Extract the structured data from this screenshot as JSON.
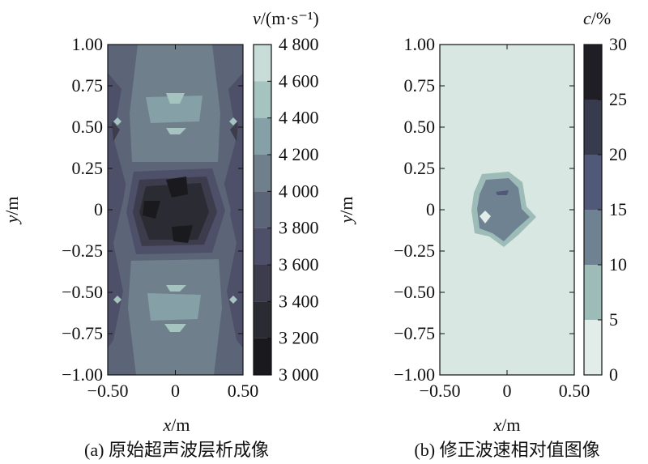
{
  "chart_data": [
    {
      "type": "heatmap",
      "kind": "filled-contour",
      "caption": "(a) 原始超声波层析成像",
      "xlabel": {
        "var": "x",
        "unit": "/m"
      },
      "ylabel": {
        "var": "y",
        "unit": "/m"
      },
      "colorbar_title": {
        "var": "v",
        "unit": "/(m·s⁻¹)"
      },
      "xlim": [
        -0.5,
        0.5
      ],
      "ylim": [
        -1.0,
        1.0
      ],
      "x_ticks": [
        "−0.50",
        "0",
        "0.50"
      ],
      "y_ticks": [
        "1.00",
        "0.75",
        "0.50",
        "0.25",
        "0",
        "−0.25",
        "−0.50",
        "−0.75",
        "−1.00"
      ],
      "colorbar_levels": [
        3000,
        3200,
        3400,
        3600,
        3800,
        4000,
        4200,
        4400,
        4600,
        4800
      ],
      "colorbar_labels": [
        "4 800",
        "4 600",
        "4 400",
        "4 200",
        "4 000",
        "3 800",
        "3 600",
        "3 400",
        "3 200",
        "3 000"
      ],
      "background_level": 4000,
      "regions": [
        {
          "desc": "low-velocity core",
          "x": 0.0,
          "y": 0.0,
          "value": 3300
        },
        {
          "desc": "high-velocity spots",
          "x": 0.0,
          "y": 0.7,
          "value": 4500
        },
        {
          "desc": "high-velocity spots",
          "x": 0.0,
          "y": -0.7,
          "value": 4500
        }
      ]
    },
    {
      "type": "heatmap",
      "kind": "filled-contour",
      "caption": "(b) 修正波速相对值图像",
      "xlabel": {
        "var": "x",
        "unit": "/m"
      },
      "ylabel": {
        "var": "y",
        "unit": "/m"
      },
      "colorbar_title": {
        "var": "c",
        "unit": "/%"
      },
      "xlim": [
        -0.5,
        0.5
      ],
      "ylim": [
        -1.0,
        1.0
      ],
      "x_ticks": [
        "−0.50",
        "0",
        "0.50"
      ],
      "y_ticks": [
        "1.00",
        "0.75",
        "0.50",
        "0.25",
        "0",
        "−0.25",
        "−0.50",
        "−0.75",
        "−1.00"
      ],
      "colorbar_levels": [
        0,
        5,
        10,
        15,
        20,
        25,
        30
      ],
      "colorbar_labels": [
        "30",
        "25",
        "20",
        "15",
        "10",
        "5",
        "0"
      ],
      "background_level": 0,
      "regions": [
        {
          "desc": "anomaly",
          "x": -0.05,
          "y": 0.0,
          "value": 12
        }
      ]
    }
  ],
  "colors": {
    "a_bands": [
      "#1a1a1e",
      "#2b2b34",
      "#3c3c4c",
      "#4e4f68",
      "#5c6478",
      "#6f7f8c",
      "#85a0a6",
      "#a5c3bf",
      "#c8ddd8",
      "#eef3f0"
    ],
    "b_bands": [
      "#e2ece8",
      "#9dbcb8",
      "#6f8292",
      "#505a78",
      "#383a4e",
      "#1e1e24"
    ],
    "a_background": "#6f7f8c",
    "b_background": "#d9e7e3"
  }
}
